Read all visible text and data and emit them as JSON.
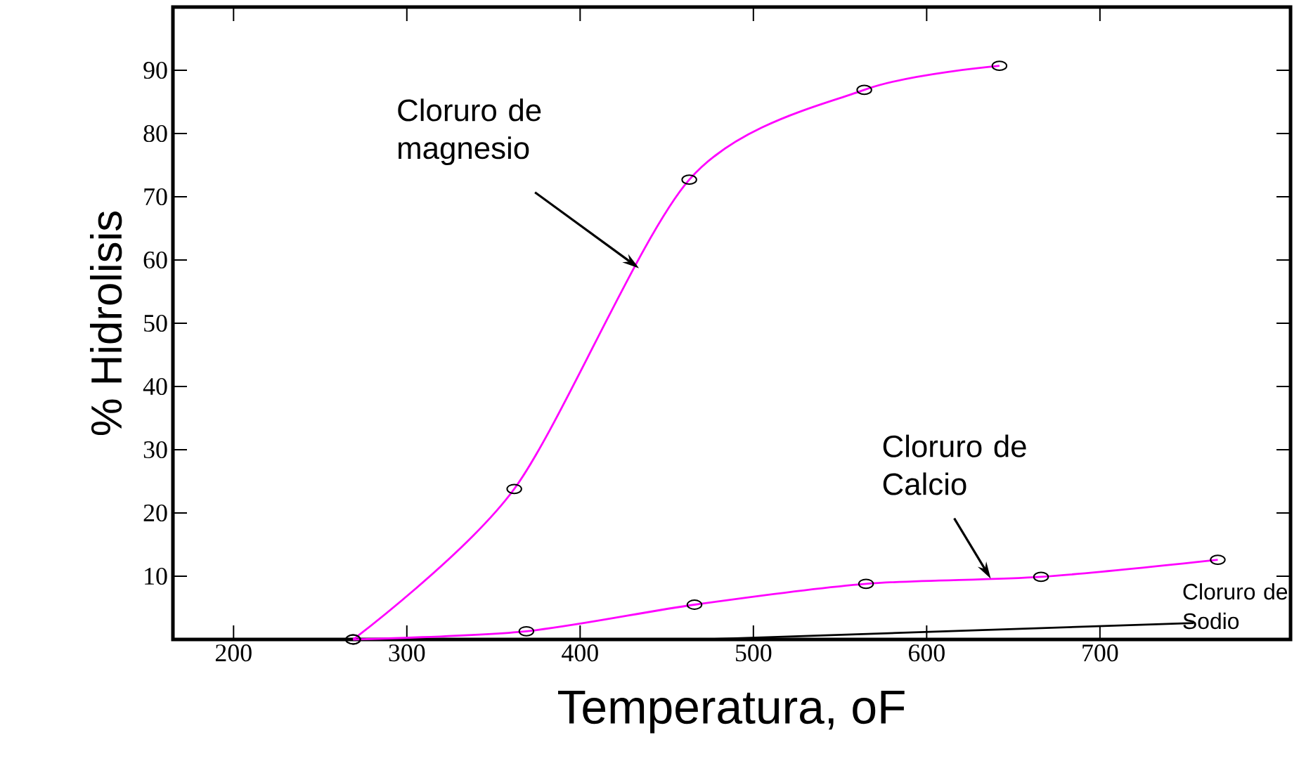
{
  "chart_data": {
    "type": "line",
    "xlabel": "Temperatura, oF",
    "ylabel": "% Hidrolisis",
    "xlim": [
      165,
      810
    ],
    "ylim": [
      0,
      100
    ],
    "xticks": [
      200,
      300,
      400,
      500,
      600,
      700
    ],
    "yticks": [
      10,
      20,
      30,
      40,
      50,
      60,
      70,
      80,
      90
    ],
    "grid": false,
    "line_style": "solid",
    "series": [
      {
        "color": "#ff00ff",
        "marker": "circle",
        "x": [
          269,
          362,
          463,
          564,
          642
        ],
        "values": [
          0,
          23.8,
          72.7,
          86.9,
          90.7
        ]
      },
      {
        "color": "#ff00ff",
        "marker": "circle",
        "x": [
          269,
          369,
          466,
          565,
          666,
          768
        ],
        "values": [
          0,
          1.3,
          5.5,
          8.8,
          9.9,
          12.6
        ]
      },
      {
        "color": "#000000",
        "marker": "none",
        "x": [
          470,
          754
        ],
        "values": [
          0,
          2.6
        ]
      }
    ],
    "annotations": [
      {
        "text": "Cloruro de magnesio",
        "x": 434,
        "y": 58.7
      },
      {
        "text": "Cloruro de Calcio",
        "x": 637,
        "y": 9.6
      },
      {
        "text": "Cloruro de Sodio",
        "x": 754,
        "y": 2.6
      }
    ]
  }
}
